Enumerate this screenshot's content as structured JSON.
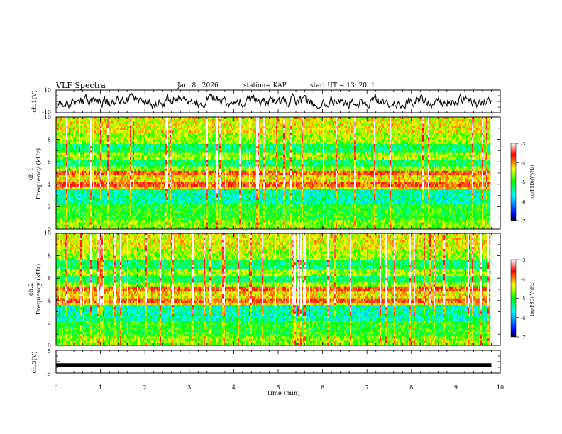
{
  "header": {
    "title": "VLF Spectra",
    "date": "Jan. 8 , 2026",
    "station": "station= KAP",
    "start": "start  UT =   13: 20: 1"
  },
  "chart_data": [
    {
      "name": "ch1-waveform",
      "type": "line",
      "ylabel": "ch.1(V)",
      "ylim": [
        -10,
        10
      ],
      "yticks": [
        "10",
        "-10"
      ],
      "series_description": "noisy signal fluctuating roughly between -5 and 6 V"
    },
    {
      "name": "ch1-spectrogram",
      "type": "heatmap",
      "ylabel": "ch.1 Frequency (kHz)",
      "ylim": [
        0,
        10
      ],
      "yticks": [
        "0",
        "2",
        "4",
        "6",
        "8",
        "10"
      ],
      "colorbar": {
        "label": "log(PSD)(V²/Hz)",
        "range": [
          -7,
          -3
        ],
        "ticks": [
          "-3",
          "-4",
          "-5",
          "-6",
          "-7"
        ]
      }
    },
    {
      "name": "ch2-spectrogram",
      "type": "heatmap",
      "ylabel": "ch.2 Frequency (kHz)",
      "ylim": [
        0,
        10
      ],
      "yticks": [
        "0",
        "2",
        "4",
        "6",
        "8",
        "10"
      ],
      "colorbar": {
        "label": "log(PSD)(V²/Hz)",
        "range": [
          -7,
          -3
        ],
        "ticks": [
          "-3",
          "-4",
          "-5",
          "-6",
          "-7"
        ]
      }
    },
    {
      "name": "ch3-waveform",
      "type": "line",
      "ylabel": "ch.3(V)",
      "ylim": [
        -5,
        5
      ],
      "yticks": [
        "5",
        "-5"
      ],
      "series_description": "near-constant signal at about -1.5 V"
    }
  ],
  "x_axis": {
    "label": "Time (min)",
    "range": [
      0,
      10
    ],
    "data_end": 9.8,
    "ticks": [
      "0",
      "1",
      "2",
      "3",
      "4",
      "5",
      "6",
      "7",
      "8",
      "9",
      "10"
    ]
  },
  "colors": {
    "frame": "#000000",
    "trace": "#000000",
    "colormap": [
      "#000000",
      "#0000ff",
      "#00ffff",
      "#00ff00",
      "#ffff00",
      "#ff0000",
      "#ffffff"
    ]
  }
}
